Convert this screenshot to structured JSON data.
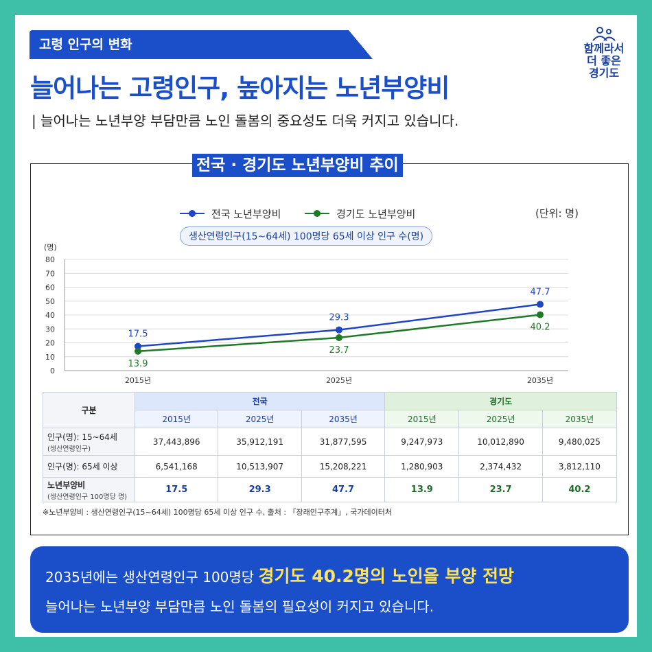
{
  "header": {
    "tag": "고령 인구의 변화",
    "headline": "늘어나는 고령인구, 높아지는 노년부양비",
    "subline": "| 늘어나는 노년부양 부담만큼 노인 돌봄의 중요성도 더욱 커지고 있습니다."
  },
  "logo": {
    "line1": "함께라서",
    "line2": "더 좋은",
    "line3": "경기도"
  },
  "chart_title": "전국 · 경기도 노년부양비 추이",
  "unit": "(단위: 명)",
  "subtitle": "생산연령인구(15~64세) 100명당 65세 이상 인구 수(명)",
  "chart_data": {
    "type": "line",
    "x": [
      "2015년",
      "2025년",
      "2035년"
    ],
    "ylabel": "(명)",
    "ylim": [
      0,
      80
    ],
    "yticks": [
      0,
      10,
      20,
      30,
      40,
      50,
      60,
      70,
      80
    ],
    "grid": true,
    "legend": "top",
    "series": [
      {
        "name": "전국 노년부양비",
        "values": [
          17.5,
          29.3,
          47.7
        ],
        "labels": [
          "17.5",
          "29.3",
          "47.7"
        ],
        "color": "#1f44c4"
      },
      {
        "name": "경기도 노년부양비",
        "values": [
          13.9,
          23.7,
          40.2
        ],
        "labels": [
          "13.9",
          "23.7",
          "40.2"
        ],
        "color": "#1e7a26"
      }
    ]
  },
  "table": {
    "corner": "구분",
    "group_national": "전국",
    "group_gyeonggi": "경기도",
    "years": [
      "2015년",
      "2025년",
      "2035년",
      "2015년",
      "2025년",
      "2035년"
    ],
    "rows": [
      {
        "label": "인구(명): 15~64세",
        "sub": "(생산연령인구)",
        "cells": [
          "37,443,896",
          "35,912,191",
          "31,877,595",
          "9,247,973",
          "10,012,890",
          "9,480,025"
        ]
      },
      {
        "label": "인구(명): 65세 이상",
        "sub": "",
        "cells": [
          "6,541,168",
          "10,513,907",
          "15,208,221",
          "1,280,903",
          "2,374,432",
          "3,812,110"
        ]
      },
      {
        "label": "노년부양비",
        "sub": "(생산연령인구 100명당 명)",
        "cells": [
          "17.5",
          "29.3",
          "47.7",
          "13.9",
          "23.7",
          "40.2"
        ]
      }
    ]
  },
  "source": "※노년부양비 : 생산연령인구(15~64세) 100명당 65세 이상 인구 수, 출처 : 「장래인구추계」, 국가데이터처",
  "bottom": {
    "line1_prefix": "2035년에는 생산연령인구 100명당 ",
    "line1_emphasis": "경기도 40.2명의 노인을 부양 전망",
    "line2": "늘어나는 노년부양 부담만큼 노인 돌봄의 필요성이 커지고 있습니다."
  }
}
